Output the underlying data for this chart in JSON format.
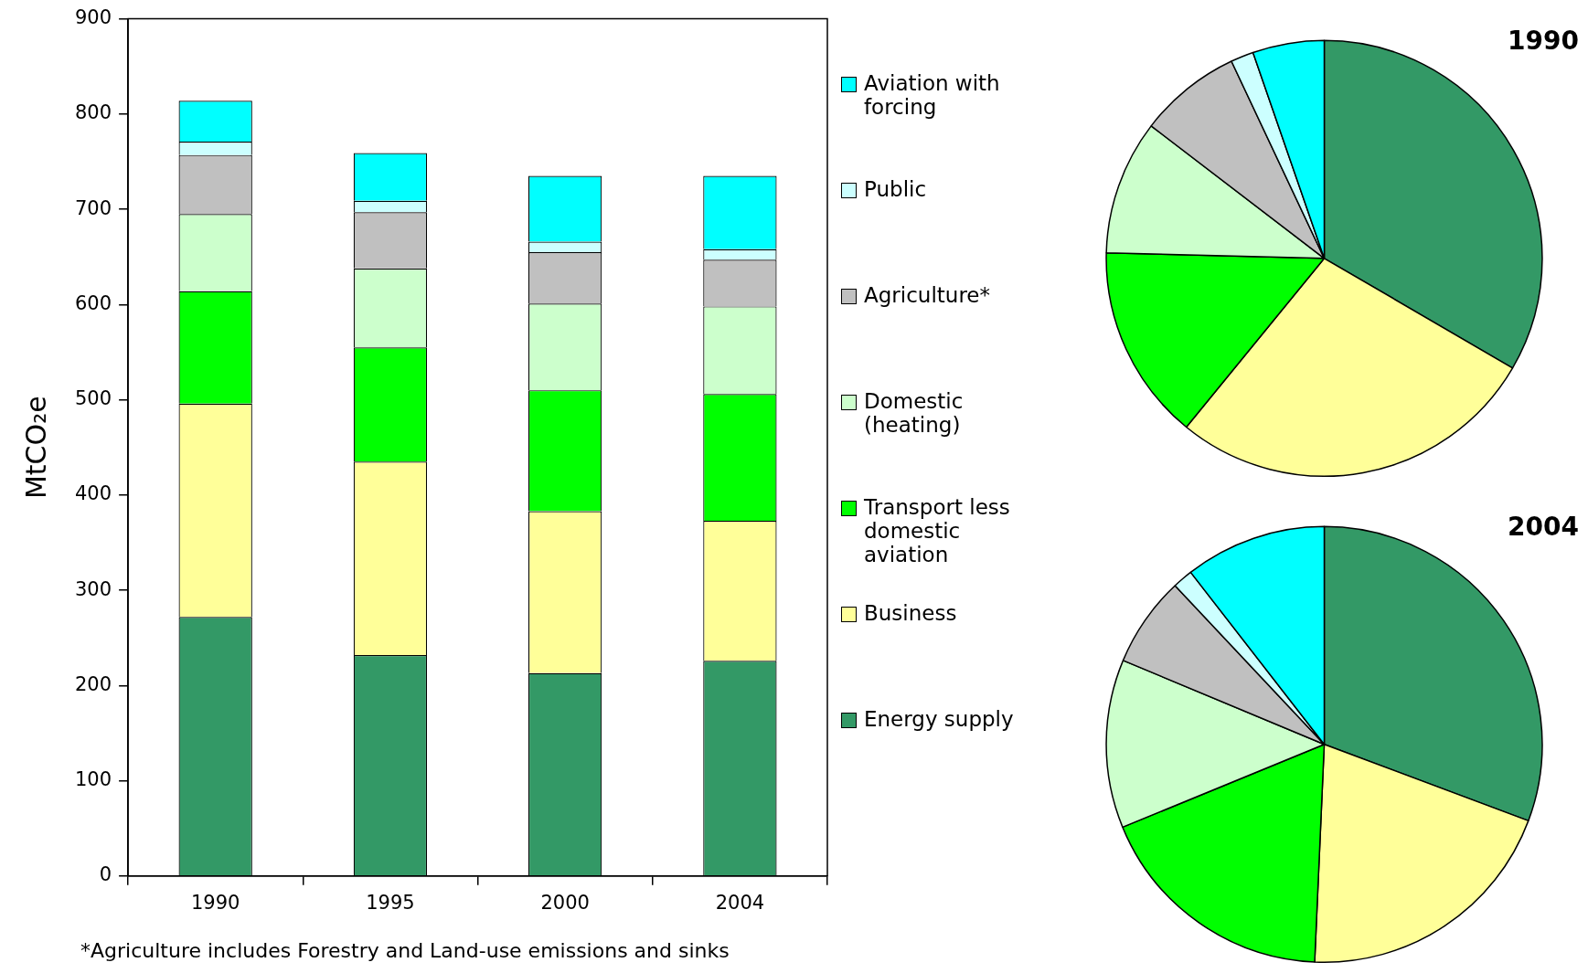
{
  "chart_data": [
    {
      "type": "bar",
      "stacked": true,
      "ylabel": "MtCO₂e",
      "categories": [
        "1990",
        "1995",
        "2000",
        "2004"
      ],
      "ylim": [
        0,
        900
      ],
      "yticks": [
        0,
        100,
        200,
        300,
        400,
        500,
        600,
        700,
        800,
        900
      ],
      "grid": false,
      "legend": "right",
      "series": [
        {
          "name": "Energy supply",
          "color": "#339966",
          "values": [
            272,
            232,
            213,
            226
          ]
        },
        {
          "name": "Business",
          "color": "#ffff99",
          "values": [
            224,
            203,
            170,
            147
          ]
        },
        {
          "name": "Transport less domestic aviation",
          "color": "#00ff00",
          "values": [
            118,
            120,
            127,
            133
          ]
        },
        {
          "name": "Domestic (heating)",
          "color": "#ccffcc",
          "values": [
            81,
            83,
            91,
            92
          ]
        },
        {
          "name": "Agriculture*",
          "color": "#c0c0c0",
          "values": [
            62,
            59,
            54,
            49
          ]
        },
        {
          "name": "Public",
          "color": "#ccffff",
          "values": [
            14,
            12,
            11,
            11
          ]
        },
        {
          "name": "Aviation with forcing",
          "color": "#00ffff",
          "values": [
            43,
            50,
            69,
            77
          ]
        }
      ],
      "annotations": [
        "*Agriculture includes Forestry and Land-use emissions and sinks"
      ]
    },
    {
      "type": "pie",
      "title": "1990",
      "categories": [
        null,
        null,
        null,
        null,
        null,
        null,
        null
      ],
      "values": [
        33.4,
        27.5,
        14.5,
        10.0,
        7.6,
        1.7,
        5.3
      ],
      "colors": [
        "#339966",
        "#ffff99",
        "#00ff00",
        "#ccffcc",
        "#c0c0c0",
        "#ccffff",
        "#00ffff"
      ]
    },
    {
      "type": "pie",
      "title": "2004",
      "categories": [
        null,
        null,
        null,
        null,
        null,
        null,
        null
      ],
      "values": [
        30.7,
        20.0,
        18.1,
        12.5,
        6.7,
        1.5,
        10.5
      ],
      "colors": [
        "#339966",
        "#ffff99",
        "#00ff00",
        "#ccffcc",
        "#c0c0c0",
        "#ccffff",
        "#00ffff"
      ]
    }
  ]
}
